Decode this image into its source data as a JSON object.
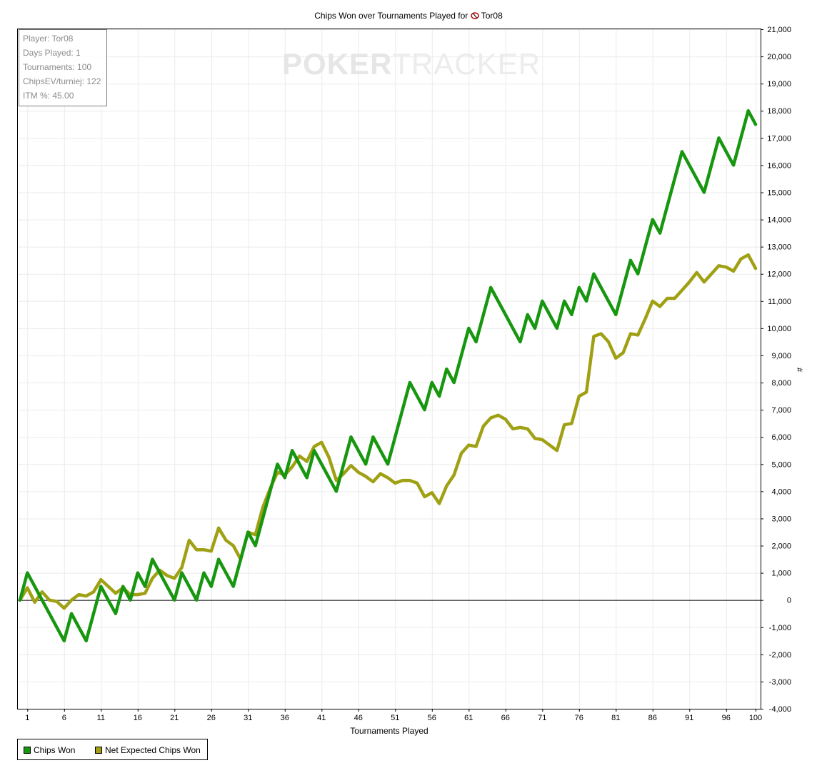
{
  "chart_data": {
    "type": "line",
    "title": "Chips Won over Tournaments Played for",
    "player_name": "Tor08",
    "xlabel": "Tournaments Played",
    "ylabel": "#",
    "xlim": [
      0,
      100
    ],
    "ylim": [
      -4000,
      21000
    ],
    "x_ticks": [
      1,
      6,
      11,
      16,
      21,
      26,
      31,
      36,
      41,
      46,
      51,
      56,
      61,
      66,
      71,
      76,
      81,
      86,
      91,
      96,
      100
    ],
    "y_ticks": [
      -4000,
      -3000,
      -2000,
      -1000,
      0,
      1000,
      2000,
      3000,
      4000,
      5000,
      6000,
      7000,
      8000,
      9000,
      10000,
      11000,
      12000,
      13000,
      14000,
      15000,
      16000,
      17000,
      18000,
      19000,
      20000,
      21000
    ],
    "y_tick_labels": [
      "-4,000",
      "-3,000",
      "-2,000",
      "-1,000",
      "0",
      "1,000",
      "2,000",
      "3,000",
      "4,000",
      "5,000",
      "6,000",
      "7,000",
      "8,000",
      "9,000",
      "10,000",
      "11,000",
      "12,000",
      "13,000",
      "14,000",
      "15,000",
      "16,000",
      "17,000",
      "18,000",
      "19,000",
      "20,000",
      "21,000"
    ],
    "grid": true,
    "legend_position": "bottom-left",
    "series": [
      {
        "name": "Chips Won",
        "color": "#17960f",
        "values": [
          0,
          1000,
          500,
          0,
          -500,
          -1000,
          -1500,
          -500,
          -1000,
          -1500,
          -500,
          500,
          0,
          -500,
          500,
          0,
          1000,
          500,
          1500,
          1000,
          500,
          0,
          1000,
          500,
          0,
          1000,
          500,
          1500,
          1000,
          500,
          1500,
          2500,
          2000,
          3000,
          4000,
          5000,
          4500,
          5500,
          5000,
          4500,
          5500,
          5000,
          4500,
          4000,
          5000,
          6000,
          5500,
          5000,
          6000,
          5500,
          5000,
          6000,
          7000,
          8000,
          7500,
          7000,
          8000,
          7500,
          8500,
          8000,
          9000,
          10000,
          9500,
          10500,
          11500,
          11000,
          10500,
          10000,
          9500,
          10500,
          10000,
          11000,
          10500,
          10000,
          11000,
          10500,
          11500,
          11000,
          12000,
          11500,
          11000,
          10500,
          11500,
          12500,
          12000,
          13000,
          14000,
          13500,
          14500,
          15500,
          16500,
          16000,
          15500,
          15000,
          16000,
          17000,
          16500,
          16000,
          17000,
          18000,
          17500
        ]
      },
      {
        "name": "Net Expected Chips Won",
        "color": "#a0a014",
        "values": [
          0,
          450,
          -80,
          300,
          0,
          -50,
          -300,
          0,
          200,
          150,
          300,
          750,
          500,
          250,
          450,
          200,
          200,
          250,
          800,
          1100,
          900,
          800,
          1200,
          2200,
          1850,
          1850,
          1800,
          2650,
          2200,
          2000,
          1500,
          2500,
          2400,
          3400,
          4100,
          4700,
          4600,
          4900,
          5300,
          5100,
          5650,
          5800,
          5250,
          4400,
          4650,
          4950,
          4700,
          4550,
          4350,
          4650,
          4500,
          4300,
          4400,
          4400,
          4300,
          3800,
          3950,
          3550,
          4200,
          4600,
          5400,
          5700,
          5650,
          6400,
          6700,
          6800,
          6650,
          6300,
          6350,
          6300,
          5950,
          5900,
          5700,
          5500,
          6450,
          6500,
          7500,
          7650,
          9700,
          9800,
          9500,
          8900,
          9100,
          9800,
          9750,
          10350,
          11000,
          10800,
          11100,
          11100,
          11400,
          11700,
          12050,
          11700,
          12000,
          12300,
          12250,
          12100,
          12550,
          12700,
          12200
        ]
      }
    ]
  },
  "stats": {
    "player": "Player: Tor08",
    "days": "Days Played: 1",
    "tournaments": "Tournaments: 100",
    "chipsev": "ChipsEV/turniej: 122",
    "itm": "ITM %: 45.00"
  },
  "watermark": {
    "part1": "POKER",
    "part2": "TRACKER"
  },
  "legend": {
    "items": [
      "Chips Won",
      "Net Expected Chips Won"
    ]
  }
}
